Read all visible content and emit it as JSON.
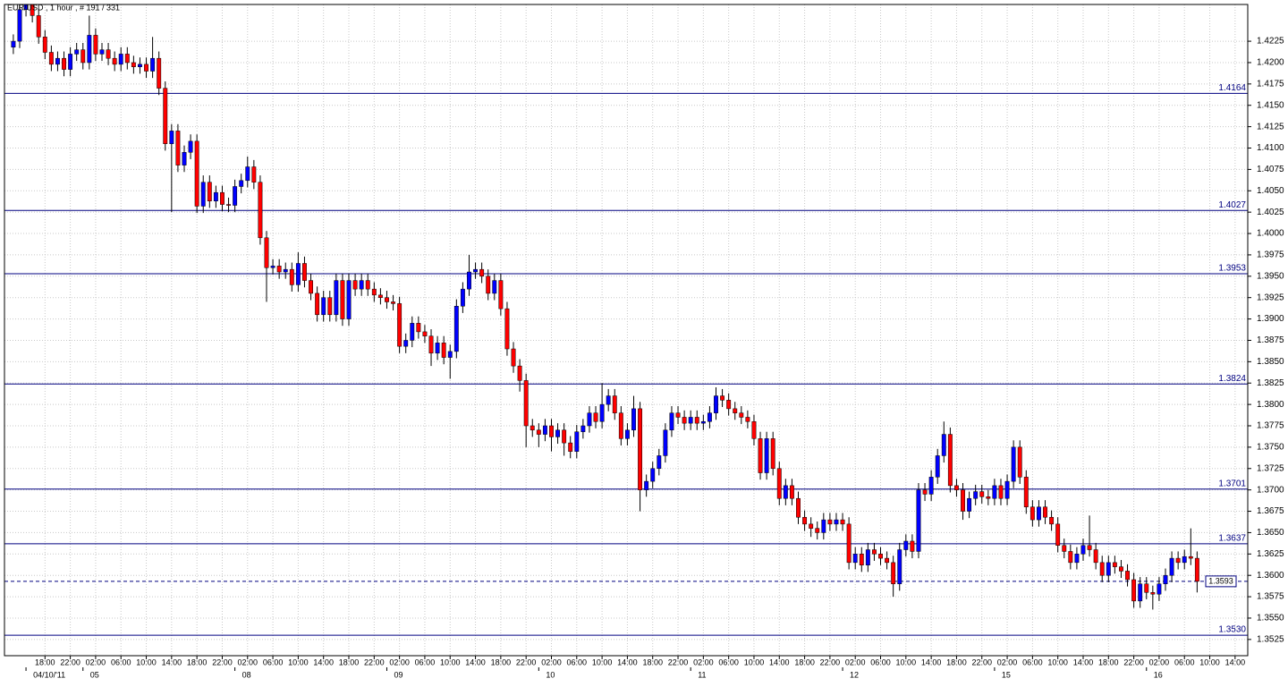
{
  "chart_data": {
    "type": "candlestick",
    "title": "EUR/USD , 1 hour , # 191 / 331",
    "up_color": "#0000ff",
    "down_color": "#ff0000",
    "wick_color": "#000000",
    "level_color": "#000080",
    "grid": true,
    "xlim": [
      -1.4,
      195
    ],
    "ylim": [
      1.3506,
      1.4268
    ],
    "yticks": [
      1.4225,
      {
        "value": 1.42,
        "label": "1.4200"
      },
      1.4175,
      {
        "value": 1.415,
        "label": "1.4150"
      },
      1.4125,
      {
        "value": 1.41,
        "label": "1.4100"
      },
      1.4075,
      {
        "value": 1.405,
        "label": "1.4050"
      },
      1.4025,
      {
        "value": 1.4,
        "label": "1.4000"
      },
      1.3975,
      {
        "value": 1.395,
        "label": "1.3950"
      },
      1.3925,
      {
        "value": 1.39,
        "label": "1.3900"
      },
      1.3875,
      {
        "value": 1.385,
        "label": "1.3850"
      },
      1.3825,
      {
        "value": 1.38,
        "label": "1.3800"
      },
      1.3775,
      {
        "value": 1.375,
        "label": "1.3750"
      },
      1.3725,
      {
        "value": 1.37,
        "label": "1.3700"
      },
      1.3675,
      {
        "value": 1.365,
        "label": "1.3650"
      },
      1.3625,
      {
        "value": 1.36,
        "label": "1.3600"
      },
      1.3575,
      {
        "value": 1.355,
        "label": "1.3550"
      },
      1.3525
    ],
    "xticks": [
      {
        "value": 5,
        "label": "18:00"
      },
      {
        "value": 9,
        "label": "22:00"
      },
      {
        "value": 13,
        "label": "02:00"
      },
      {
        "value": 17,
        "label": "06:00"
      },
      {
        "value": 21,
        "label": "10:00"
      },
      {
        "value": 25,
        "label": "14:00"
      },
      {
        "value": 29,
        "label": "18:00"
      },
      {
        "value": 33,
        "label": "22:00"
      },
      {
        "value": 37,
        "label": "02:00"
      },
      {
        "value": 41,
        "label": "06:00"
      },
      {
        "value": 45,
        "label": "10:00"
      },
      {
        "value": 49,
        "label": "14:00"
      },
      {
        "value": 53,
        "label": "18:00"
      },
      {
        "value": 57,
        "label": "22:00"
      },
      {
        "value": 61,
        "label": "02:00"
      },
      {
        "value": 65,
        "label": "06:00"
      },
      {
        "value": 69,
        "label": "10:00"
      },
      {
        "value": 73,
        "label": "14:00"
      },
      {
        "value": 77,
        "label": "18:00"
      },
      {
        "value": 81,
        "label": "22:00"
      },
      {
        "value": 85,
        "label": "02:00"
      },
      {
        "value": 89,
        "label": "06:00"
      },
      {
        "value": 93,
        "label": "10:00"
      },
      {
        "value": 97,
        "label": "14:00"
      },
      {
        "value": 101,
        "label": "18:00"
      },
      {
        "value": 105,
        "label": "22:00"
      },
      {
        "value": 109,
        "label": "02:00"
      },
      {
        "value": 113,
        "label": "06:00"
      },
      {
        "value": 117,
        "label": "10:00"
      },
      {
        "value": 121,
        "label": "14:00"
      },
      {
        "value": 125,
        "label": "18:00"
      },
      {
        "value": 129,
        "label": "22:00"
      },
      {
        "value": 133,
        "label": "02:00"
      },
      {
        "value": 137,
        "label": "06:00"
      },
      {
        "value": 141,
        "label": "10:00"
      },
      {
        "value": 145,
        "label": "14:00"
      },
      {
        "value": 149,
        "label": "18:00"
      },
      {
        "value": 153,
        "label": "22:00"
      },
      {
        "value": 157,
        "label": "02:00"
      },
      {
        "value": 161,
        "label": "06:00"
      },
      {
        "value": 165,
        "label": "10:00"
      },
      {
        "value": 169,
        "label": "14:00"
      },
      {
        "value": 173,
        "label": "18:00"
      },
      {
        "value": 177,
        "label": "22:00"
      },
      {
        "value": 181,
        "label": "02:00"
      },
      {
        "value": 185,
        "label": "06:00"
      },
      {
        "value": 189,
        "label": "10:00"
      },
      {
        "value": 193,
        "label": "14:00"
      }
    ],
    "date_ticks": [
      {
        "value": 2,
        "label": "04/10/'11"
      },
      {
        "value": 11,
        "label": "05"
      },
      {
        "value": 35,
        "label": "08"
      },
      {
        "value": 59,
        "label": "09"
      },
      {
        "value": 83,
        "label": "10"
      },
      {
        "value": 107,
        "label": "11"
      },
      {
        "value": 131,
        "label": "12"
      },
      {
        "value": 155,
        "label": "15"
      },
      {
        "value": 179,
        "label": "16"
      }
    ],
    "levels": [
      1.4164,
      1.4027,
      1.3953,
      1.3824,
      1.3701,
      1.3637,
      {
        "value": 1.353,
        "label": "1.3530"
      }
    ],
    "current_price": 1.3593,
    "open": [
      1.4218,
      1.4225,
      1.4262,
      1.4268,
      1.4255,
      1.423,
      1.4212,
      1.4198,
      1.4205,
      1.4192,
      1.421,
      1.4215,
      1.42,
      1.4232,
      1.421,
      1.4215,
      1.4205,
      1.4198,
      1.421,
      1.42,
      1.4195,
      1.4198,
      1.419,
      1.4205,
      1.417,
      1.4105,
      1.412,
      1.408,
      1.4095,
      1.4108,
      1.4032,
      1.406,
      1.4038,
      1.4048,
      1.4034,
      1.4033,
      1.4055,
      1.4062,
      1.4078,
      1.406,
      1.3995,
      1.396,
      1.3962,
      1.3955,
      1.3958,
      1.394,
      1.3965,
      1.3945,
      1.393,
      1.3905,
      1.3925,
      1.3905,
      1.3945,
      1.39,
      1.3945,
      1.3935,
      1.3945,
      1.3935,
      1.3928,
      1.3925,
      1.392,
      1.3918,
      1.3868,
      1.3875,
      1.3895,
      1.3885,
      1.388,
      1.386,
      1.3872,
      1.3855,
      1.3862,
      1.3915,
      1.3935,
      1.3955,
      1.3958,
      1.395,
      1.393,
      1.3945,
      1.3912,
      1.3865,
      1.3845,
      1.3828,
      1.3775,
      1.377,
      1.3765,
      1.3775,
      1.3762,
      1.377,
      1.3755,
      1.3745,
      1.3768,
      1.3775,
      1.379,
      1.378,
      1.38,
      1.381,
      1.379,
      1.376,
      1.377,
      1.3795,
      1.37,
      1.371,
      1.3725,
      1.374,
      1.377,
      1.379,
      1.3785,
      1.3778,
      1.3785,
      1.3778,
      1.378,
      1.379,
      1.381,
      1.3805,
      1.3795,
      1.379,
      1.3785,
      1.378,
      1.376,
      1.372,
      1.376,
      1.3725,
      1.369,
      1.3705,
      1.369,
      1.3668,
      1.366,
      1.3655,
      1.365,
      1.3665,
      1.366,
      1.3665,
      1.366,
      1.3615,
      1.3625,
      1.3612,
      1.363,
      1.3625,
      1.362,
      1.3615,
      1.359,
      1.363,
      1.364,
      1.3628,
      1.37,
      1.3695,
      1.3715,
      1.374,
      1.3765,
      1.3705,
      1.37,
      1.3675,
      1.369,
      1.3698,
      1.3692,
      1.369,
      1.3705,
      1.369,
      1.371,
      1.375,
      1.3715,
      1.368,
      1.3665,
      1.368,
      1.3668,
      1.366,
      1.3635,
      1.3628,
      1.3615,
      1.3625,
      1.3635,
      1.363,
      1.3615,
      1.36,
      1.3615,
      1.361,
      1.3605,
      1.3595,
      1.357,
      1.359,
      1.358,
      1.3578,
      1.359,
      1.36,
      1.362,
      1.3615,
      1.3622,
      1.362
    ],
    "high": [
      1.4233,
      1.427,
      1.4276,
      1.4276,
      1.4263,
      1.4238,
      1.422,
      1.4213,
      1.4213,
      1.4218,
      1.4223,
      1.4223,
      1.4255,
      1.424,
      1.4223,
      1.4223,
      1.4213,
      1.4218,
      1.4218,
      1.4208,
      1.4206,
      1.4206,
      1.423,
      1.4213,
      1.4178,
      1.4128,
      1.4128,
      1.4103,
      1.4116,
      1.4116,
      1.4068,
      1.4068,
      1.4056,
      1.4056,
      1.4042,
      1.4063,
      1.407,
      1.409,
      1.4086,
      1.4068,
      1.4003,
      1.397,
      1.397,
      1.3966,
      1.3966,
      1.3978,
      1.3973,
      1.3953,
      1.3938,
      1.3933,
      1.3933,
      1.3953,
      1.3953,
      1.3953,
      1.3953,
      1.3953,
      1.3953,
      1.3943,
      1.3936,
      1.3933,
      1.3928,
      1.3926,
      1.3883,
      1.3903,
      1.3903,
      1.3893,
      1.3888,
      1.388,
      1.388,
      1.387,
      1.3923,
      1.3943,
      1.3975,
      1.3966,
      1.3966,
      1.3958,
      1.3953,
      1.3953,
      1.392,
      1.3873,
      1.3853,
      1.3836,
      1.3783,
      1.3778,
      1.3783,
      1.3783,
      1.3778,
      1.3778,
      1.3763,
      1.3776,
      1.3783,
      1.3798,
      1.3798,
      1.3825,
      1.3818,
      1.3818,
      1.3798,
      1.3778,
      1.381,
      1.3803,
      1.3718,
      1.3733,
      1.3748,
      1.3778,
      1.3798,
      1.3798,
      1.3793,
      1.3793,
      1.3793,
      1.3788,
      1.3798,
      1.382,
      1.3818,
      1.3813,
      1.3803,
      1.3798,
      1.3793,
      1.3788,
      1.3768,
      1.3768,
      1.3768,
      1.3733,
      1.3713,
      1.3713,
      1.3698,
      1.3676,
      1.3668,
      1.3663,
      1.3673,
      1.3673,
      1.3673,
      1.3673,
      1.3668,
      1.3633,
      1.3633,
      1.3638,
      1.3638,
      1.3633,
      1.3628,
      1.3623,
      1.3638,
      1.3648,
      1.3648,
      1.3708,
      1.3708,
      1.3723,
      1.3748,
      1.378,
      1.3773,
      1.3713,
      1.3708,
      1.3698,
      1.3706,
      1.3706,
      1.37,
      1.3713,
      1.3713,
      1.3718,
      1.3758,
      1.3758,
      1.3723,
      1.3688,
      1.3688,
      1.3688,
      1.3676,
      1.3668,
      1.3643,
      1.3636,
      1.3633,
      1.3643,
      1.367,
      1.3638,
      1.3623,
      1.3623,
      1.3623,
      1.3618,
      1.3613,
      1.3603,
      1.3598,
      1.3598,
      1.3588,
      1.3598,
      1.3608,
      1.3628,
      1.3628,
      1.363,
      1.3655,
      1.3628
    ],
    "low": [
      1.421,
      1.4217,
      1.4254,
      1.4247,
      1.4222,
      1.4204,
      1.419,
      1.419,
      1.4184,
      1.4184,
      1.4202,
      1.4192,
      1.4192,
      1.4202,
      1.4202,
      1.4197,
      1.419,
      1.419,
      1.4192,
      1.4187,
      1.4187,
      1.4182,
      1.4182,
      1.4162,
      1.4097,
      1.4025,
      1.4072,
      1.4072,
      1.4087,
      1.4024,
      1.4024,
      1.403,
      1.403,
      1.4026,
      1.4025,
      1.4025,
      1.4047,
      1.4054,
      1.4052,
      1.3987,
      1.392,
      1.3952,
      1.3947,
      1.3947,
      1.3932,
      1.3932,
      1.3937,
      1.3922,
      1.3897,
      1.3897,
      1.3897,
      1.3897,
      1.3892,
      1.3892,
      1.3927,
      1.3927,
      1.3927,
      1.392,
      1.3917,
      1.3912,
      1.391,
      1.386,
      1.386,
      1.3867,
      1.3877,
      1.3872,
      1.3845,
      1.3852,
      1.3847,
      1.383,
      1.3854,
      1.3907,
      1.3927,
      1.3947,
      1.3942,
      1.3922,
      1.3922,
      1.3904,
      1.3857,
      1.3837,
      1.3815,
      1.375,
      1.3762,
      1.375,
      1.3757,
      1.3745,
      1.3754,
      1.374,
      1.3737,
      1.3737,
      1.376,
      1.3767,
      1.3772,
      1.3772,
      1.3792,
      1.3782,
      1.3752,
      1.3752,
      1.3762,
      1.3675,
      1.3692,
      1.3702,
      1.3717,
      1.3732,
      1.3762,
      1.3777,
      1.377,
      1.377,
      1.377,
      1.377,
      1.3772,
      1.3782,
      1.3797,
      1.3787,
      1.3782,
      1.3777,
      1.3772,
      1.3752,
      1.3712,
      1.3712,
      1.3717,
      1.3682,
      1.3682,
      1.3682,
      1.366,
      1.3652,
      1.3645,
      1.3642,
      1.3642,
      1.3652,
      1.3652,
      1.3652,
      1.3607,
      1.3607,
      1.3604,
      1.3604,
      1.3617,
      1.3612,
      1.3607,
      1.3575,
      1.3582,
      1.3622,
      1.362,
      1.362,
      1.3687,
      1.3687,
      1.3707,
      1.3732,
      1.3697,
      1.3692,
      1.3665,
      1.3667,
      1.3682,
      1.3684,
      1.3682,
      1.3682,
      1.3682,
      1.3682,
      1.3702,
      1.3707,
      1.3672,
      1.3657,
      1.3657,
      1.366,
      1.3652,
      1.3627,
      1.362,
      1.3607,
      1.3607,
      1.3617,
      1.3622,
      1.3607,
      1.3592,
      1.3592,
      1.3602,
      1.3597,
      1.3587,
      1.3562,
      1.3562,
      1.3572,
      1.356,
      1.357,
      1.3582,
      1.3592,
      1.3607,
      1.3607,
      1.3612,
      1.358
    ],
    "close": [
      1.4225,
      1.4262,
      1.4268,
      1.4255,
      1.423,
      1.4212,
      1.4198,
      1.4205,
      1.4192,
      1.421,
      1.4215,
      1.42,
      1.4232,
      1.421,
      1.4215,
      1.4205,
      1.4198,
      1.421,
      1.42,
      1.4195,
      1.4198,
      1.419,
      1.4205,
      1.417,
      1.4105,
      1.412,
      1.408,
      1.4095,
      1.4108,
      1.4032,
      1.406,
      1.4038,
      1.4048,
      1.4034,
      1.4033,
      1.4055,
      1.4062,
      1.4078,
      1.406,
      1.3995,
      1.396,
      1.3962,
      1.3955,
      1.3958,
      1.394,
      1.3965,
      1.3945,
      1.393,
      1.3905,
      1.3925,
      1.3905,
      1.3945,
      1.39,
      1.3945,
      1.3935,
      1.3945,
      1.3935,
      1.3928,
      1.3925,
      1.392,
      1.3918,
      1.3868,
      1.3875,
      1.3895,
      1.3885,
      1.388,
      1.386,
      1.3872,
      1.3855,
      1.3862,
      1.3915,
      1.3935,
      1.3955,
      1.3958,
      1.395,
      1.393,
      1.3945,
      1.3912,
      1.3865,
      1.3845,
      1.3828,
      1.3775,
      1.377,
      1.3765,
      1.3775,
      1.3762,
      1.377,
      1.3755,
      1.3745,
      1.3768,
      1.3775,
      1.379,
      1.378,
      1.38,
      1.381,
      1.379,
      1.376,
      1.377,
      1.3795,
      1.37,
      1.371,
      1.3725,
      1.374,
      1.377,
      1.379,
      1.3785,
      1.3778,
      1.3785,
      1.3778,
      1.378,
      1.379,
      1.381,
      1.3805,
      1.3795,
      1.379,
      1.3785,
      1.378,
      1.376,
      1.372,
      1.376,
      1.3725,
      1.369,
      1.3705,
      1.369,
      1.3668,
      1.366,
      1.3655,
      1.365,
      1.3665,
      1.366,
      1.3665,
      1.366,
      1.3615,
      1.3625,
      1.3612,
      1.363,
      1.3625,
      1.362,
      1.3615,
      1.359,
      1.363,
      1.364,
      1.3628,
      1.37,
      1.3695,
      1.3715,
      1.374,
      1.3765,
      1.3705,
      1.37,
      1.3675,
      1.369,
      1.3698,
      1.3692,
      1.369,
      1.3705,
      1.369,
      1.371,
      1.375,
      1.3715,
      1.368,
      1.3665,
      1.368,
      1.3668,
      1.366,
      1.3635,
      1.3628,
      1.3615,
      1.3625,
      1.3635,
      1.363,
      1.3615,
      1.36,
      1.3615,
      1.361,
      1.3605,
      1.3595,
      1.357,
      1.359,
      1.358,
      1.3578,
      1.359,
      1.36,
      1.362,
      1.3615,
      1.3622,
      1.362,
      1.3593
    ]
  }
}
